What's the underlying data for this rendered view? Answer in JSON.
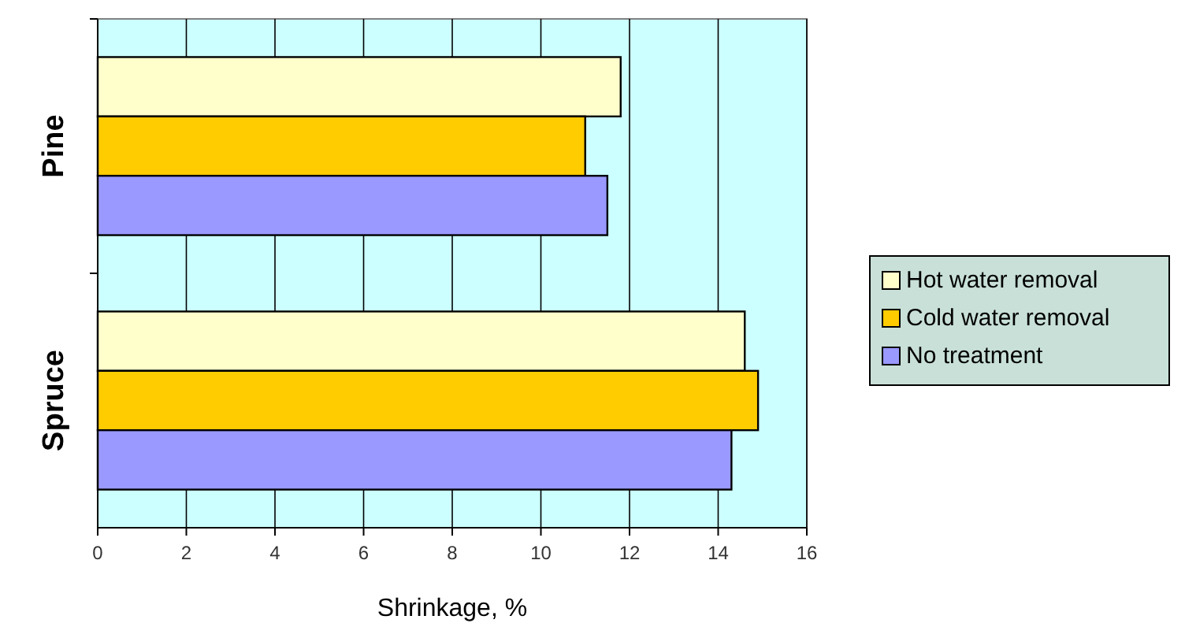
{
  "chart_data": {
    "type": "bar",
    "orientation": "horizontal",
    "xlabel": "Shrinkage, %",
    "categories": [
      "Pine",
      "Spruce"
    ],
    "series": [
      {
        "name": "Hot water removal",
        "color": "#ffffcc",
        "values": [
          11.8,
          14.6
        ]
      },
      {
        "name": "Cold water removal",
        "color": "#ffcc00",
        "values": [
          11.0,
          14.9
        ]
      },
      {
        "name": "No treatment",
        "color": "#9999ff",
        "values": [
          11.5,
          14.3
        ]
      }
    ],
    "xlim": [
      0,
      16
    ],
    "xticks": [
      0,
      2,
      4,
      6,
      8,
      10,
      12,
      14,
      16
    ],
    "grid": "x",
    "legend": "right"
  }
}
